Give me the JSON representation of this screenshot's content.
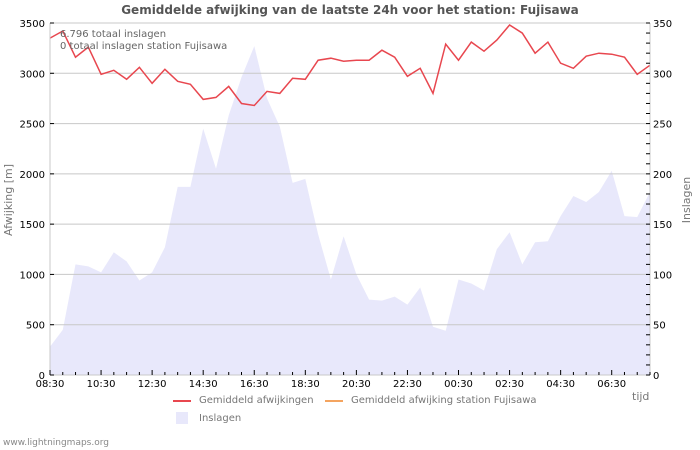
{
  "chart_data": {
    "type": "line",
    "title": "Gemiddelde afwijking van de laatste 24h voor het station: Fujisawa",
    "xlabel": "tijd",
    "ylabel": "Afwijking  [m]",
    "ylabel_right": "Inslagen",
    "ylim": [
      0,
      3500
    ],
    "ylim_right": [
      0,
      350
    ],
    "yticks": [
      "0",
      "500",
      "1000",
      "1500",
      "2000",
      "2500",
      "3000",
      "3500"
    ],
    "yticks_right": [
      "0",
      "50",
      "100",
      "150",
      "200",
      "250",
      "300",
      "350"
    ],
    "xticks": [
      "08:30",
      "10:30",
      "12:30",
      "14:30",
      "16:30",
      "18:30",
      "20:30",
      "22:30",
      "00:30",
      "02:30",
      "04:30",
      "06:30"
    ],
    "grid": true,
    "legend_position": "bottom",
    "annotations": [
      "6.796 totaal inslagen",
      "0 totaal inslagen station Fujisawa"
    ],
    "x": [
      "08:30",
      "09:00",
      "09:30",
      "10:00",
      "10:30",
      "11:00",
      "11:30",
      "12:00",
      "12:30",
      "13:00",
      "13:30",
      "14:00",
      "14:30",
      "15:00",
      "15:30",
      "16:00",
      "16:30",
      "17:00",
      "17:30",
      "18:00",
      "18:30",
      "19:00",
      "19:30",
      "20:00",
      "20:30",
      "21:00",
      "21:30",
      "22:00",
      "22:30",
      "23:00",
      "23:30",
      "00:00",
      "00:30",
      "01:00",
      "01:30",
      "02:00",
      "02:30",
      "03:00",
      "03:30",
      "04:00",
      "04:30",
      "05:00",
      "05:30",
      "06:00",
      "06:30",
      "07:00",
      "07:30",
      "08:00"
    ],
    "series": [
      {
        "name": "Gemiddeld afwijkingen",
        "axis": "left",
        "color": "#e8474f",
        "values": [
          3350,
          3420,
          3160,
          3260,
          2990,
          3030,
          2940,
          3060,
          2900,
          3040,
          2920,
          2890,
          2740,
          2760,
          2870,
          2700,
          2680,
          2820,
          2800,
          2950,
          2940,
          3130,
          3150,
          3120,
          3130,
          3130,
          3230,
          3160,
          2970,
          3050,
          2800,
          3290,
          3130,
          3310,
          3220,
          3330,
          3480,
          3400,
          3200,
          3310,
          3100,
          3050,
          3170,
          3200,
          3190,
          3160,
          2990,
          3080
        ]
      },
      {
        "name": "Gemiddeld afwijking station Fujisawa",
        "axis": "left",
        "color": "#f4a460",
        "values": []
      },
      {
        "name": "Inslagen",
        "axis": "right",
        "color": "#e8e8fb",
        "type": "area",
        "values": [
          28,
          45,
          110,
          108,
          102,
          122,
          113,
          94,
          102,
          127,
          187,
          187,
          245,
          205,
          258,
          296,
          327,
          275,
          247,
          191,
          195,
          140,
          95,
          138,
          100,
          75,
          74,
          78,
          70,
          87,
          48,
          44,
          95,
          91,
          84,
          125,
          142,
          110,
          132,
          133,
          158,
          178,
          172,
          182,
          203,
          158,
          157,
          182
        ]
      }
    ]
  },
  "title": "Gemiddelde afwijking van de laatste 24h voor het station: Fujisawa",
  "info": {
    "total": "6.796 totaal inslagen",
    "station_total": "0 totaal inslagen station Fujisawa"
  },
  "axes": {
    "xlabel": "tijd",
    "ylabel_left": "Afwijking  [m]",
    "ylabel_right": "Inslagen"
  },
  "legend": {
    "items": [
      {
        "label": "Gemiddeld afwijkingen",
        "color": "#e8474f"
      },
      {
        "label": "Gemiddeld afwijking station Fujisawa",
        "color": "#f4a460"
      },
      {
        "label": "Inslagen",
        "color": "#e8e8fb"
      }
    ]
  },
  "footer": "www.lightningmaps.org"
}
